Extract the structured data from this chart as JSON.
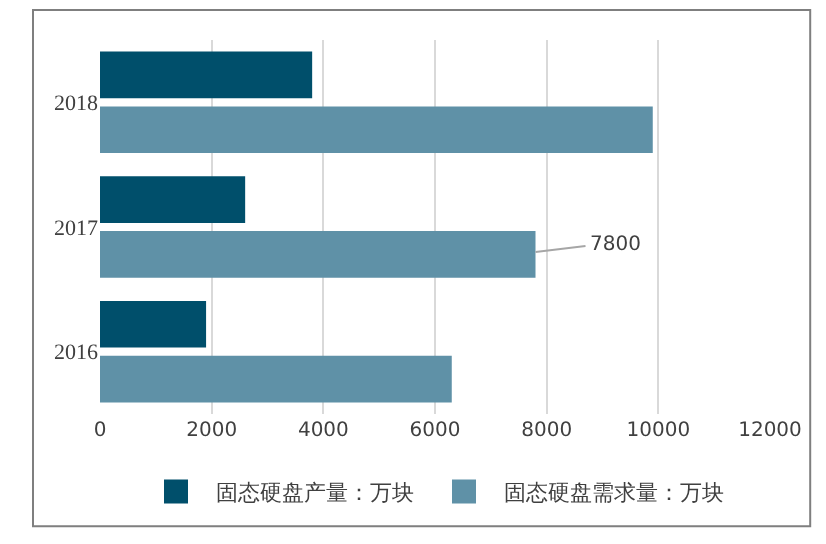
{
  "chart_data": {
    "type": "bar",
    "orientation": "horizontal",
    "categories": [
      "2018",
      "2017",
      "2016"
    ],
    "series": [
      {
        "name": "固态硬盘产量：万块",
        "color": "#004f6b",
        "values": [
          3800,
          2600,
          1900
        ]
      },
      {
        "name": "固态硬盘需求量：万块",
        "color": "#5f91a7",
        "values": [
          9900,
          7800,
          6300
        ],
        "value_labels": [
          null,
          "7800",
          null
        ]
      }
    ],
    "xlim": [
      0,
      12000
    ],
    "xticks": [
      0,
      2000,
      4000,
      6000,
      8000,
      10000,
      12000
    ],
    "grid": "x",
    "legend": "bottom"
  }
}
